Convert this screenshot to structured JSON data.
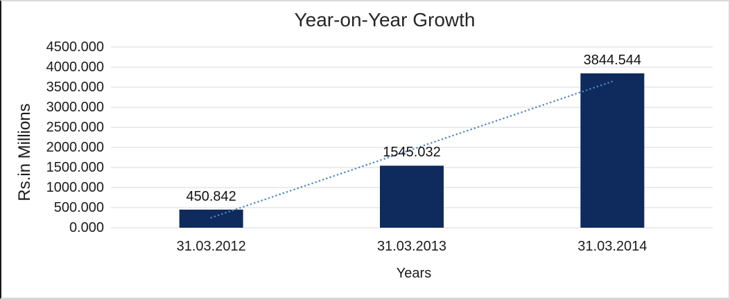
{
  "chart_data": {
    "type": "bar",
    "title": "Year-on-Year Growth",
    "xlabel": "Years",
    "ylabel": "Rs.in Millions",
    "categories": [
      "31.03.2012",
      "31.03.2013",
      "31.03.2014"
    ],
    "values": [
      450.842,
      1545.032,
      3844.544
    ],
    "data_labels": [
      "450.842",
      "1545.032",
      "3844.544"
    ],
    "y_ticks": [
      "0.000",
      "500.000",
      "1000.000",
      "1500.000",
      "2000.000",
      "2500.000",
      "3000.000",
      "3500.000",
      "4000.000",
      "4500.000"
    ],
    "ylim": [
      0,
      4500
    ],
    "grid": true,
    "legend_position": "none",
    "bar_color": "#0F2A5C",
    "gridline_color": "#D9D9D9",
    "trendline": {
      "type": "linear",
      "style": "dotted",
      "color": "#5084C8",
      "start_value": 250,
      "end_value": 3644
    }
  }
}
